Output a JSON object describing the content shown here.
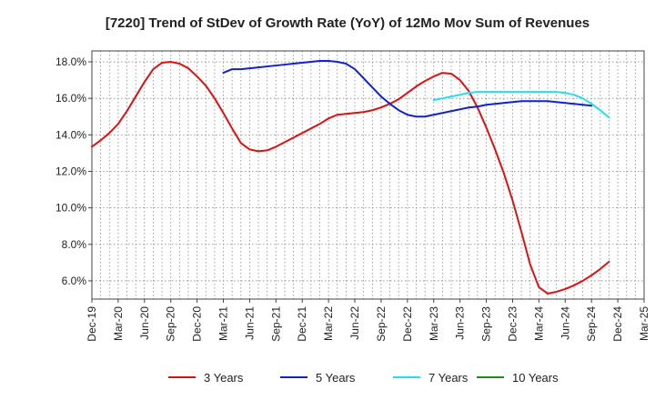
{
  "chart_data": {
    "type": "line",
    "title": "[7220]  Trend of StDev of Growth Rate (YoY) of 12Mo Mov Sum of Revenues",
    "xlabel": "",
    "ylabel": "",
    "ylim": [
      5.0,
      18.6
    ],
    "yticks": [
      6.0,
      8.0,
      10.0,
      12.0,
      14.0,
      16.0,
      18.0
    ],
    "ytick_labels": [
      "6.0%",
      "8.0%",
      "10.0%",
      "12.0%",
      "14.0%",
      "16.0%",
      "18.0%"
    ],
    "x_start": "Dec-19",
    "x_tick_labels": [
      "Dec-19",
      "Mar-20",
      "Jun-20",
      "Sep-20",
      "Dec-20",
      "Mar-21",
      "Jun-21",
      "Sep-21",
      "Dec-21",
      "Mar-22",
      "Jun-22",
      "Sep-22",
      "Dec-22",
      "Mar-23",
      "Jun-23",
      "Sep-23",
      "Dec-23",
      "Mar-24",
      "Jun-24",
      "Sep-24",
      "Dec-24",
      "Mar-25"
    ],
    "grid": true,
    "legend_position": "bottom",
    "series": [
      {
        "name": "3 Years",
        "color": "#dd1111",
        "start_month": 0,
        "values": [
          13.35,
          13.7,
          14.1,
          14.6,
          15.3,
          16.1,
          16.9,
          17.6,
          17.95,
          18.0,
          17.9,
          17.65,
          17.2,
          16.7,
          16.0,
          15.2,
          14.35,
          13.55,
          13.2,
          13.1,
          13.15,
          13.35,
          13.6,
          13.85,
          14.1,
          14.35,
          14.6,
          14.9,
          15.1,
          15.15,
          15.2,
          15.25,
          15.35,
          15.5,
          15.7,
          15.95,
          16.3,
          16.65,
          16.95,
          17.2,
          17.4,
          17.35,
          17.0,
          16.4,
          15.5,
          14.4,
          13.2,
          11.9,
          10.4,
          8.7,
          6.9,
          5.65,
          5.3,
          5.4,
          5.55,
          5.75,
          6.0,
          6.3,
          6.65,
          7.05
        ]
      },
      {
        "name": "5 Years",
        "color": "#1122cc",
        "start_month": 15,
        "values": [
          17.4,
          17.6,
          17.6,
          17.65,
          17.7,
          17.75,
          17.8,
          17.85,
          17.9,
          17.95,
          18.0,
          18.05,
          18.05,
          18.0,
          17.9,
          17.6,
          17.1,
          16.6,
          16.1,
          15.7,
          15.35,
          15.1,
          15.0,
          15.0,
          15.1,
          15.2,
          15.3,
          15.4,
          15.5,
          15.55,
          15.65,
          15.7,
          15.75,
          15.8,
          15.85,
          15.85,
          15.85,
          15.85,
          15.8,
          15.75,
          15.7,
          15.65,
          15.6
        ]
      },
      {
        "name": "7 Years",
        "color": "#22ddee",
        "start_month": 39,
        "values": [
          15.9,
          16.0,
          16.1,
          16.2,
          16.3,
          16.35,
          16.35,
          16.35,
          16.35,
          16.35,
          16.35,
          16.35,
          16.35,
          16.35,
          16.35,
          16.3,
          16.2,
          16.0,
          15.7,
          15.35,
          14.95
        ]
      },
      {
        "name": "10 Years",
        "color": "#228822",
        "start_month": 0,
        "values": []
      }
    ]
  }
}
